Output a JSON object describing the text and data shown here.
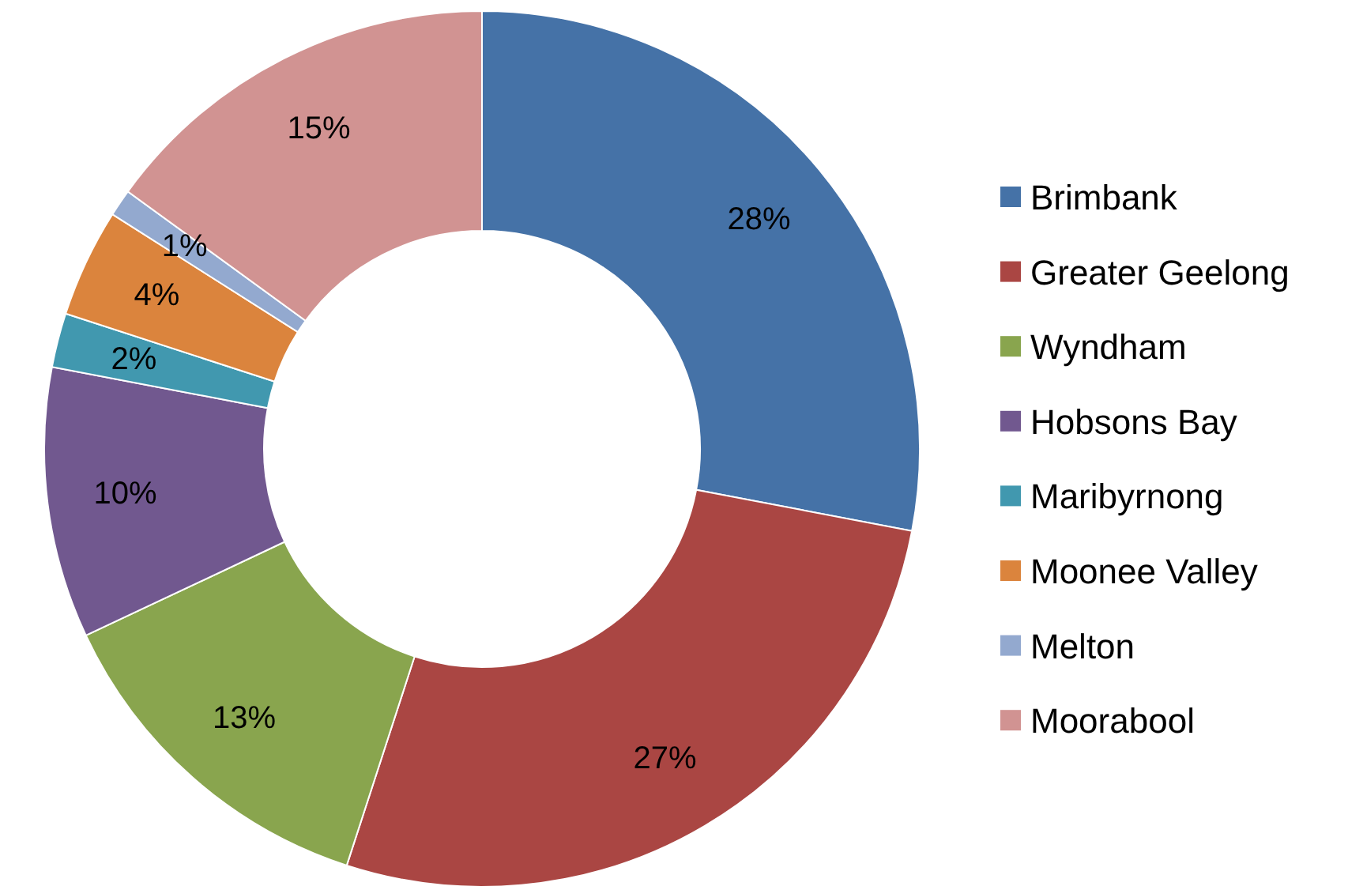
{
  "chart_data": {
    "type": "donut",
    "categories": [
      "Brimbank",
      "Greater Geelong",
      "Wyndham",
      "Hobsons Bay",
      "Maribyrnong",
      "Moonee Valley",
      "Melton",
      "Moorabool"
    ],
    "values": [
      28,
      27,
      13,
      10,
      2,
      4,
      1,
      15
    ],
    "value_labels": [
      "28%",
      "27%",
      "13%",
      "10%",
      "2%",
      "4%",
      "1%",
      "15%"
    ],
    "colors": [
      "#4572a7",
      "#aa4643",
      "#89a54e",
      "#71588f",
      "#4198af",
      "#db843d",
      "#93a9cf",
      "#d19392"
    ],
    "legend": "right"
  }
}
